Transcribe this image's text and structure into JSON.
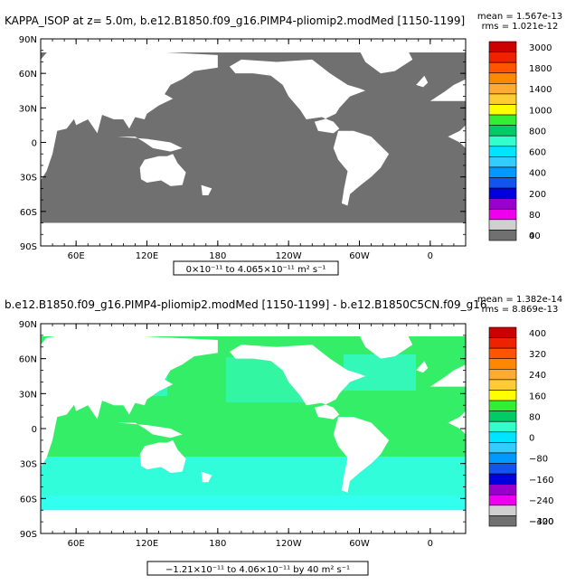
{
  "panels": [
    {
      "id": "top",
      "title": "KAPPA_ISOP at z=    5.0m, b.e12.B1850.f09_g16.PIMP4-pliomip2.modMed [1150-1199]",
      "stats_mean": "mean = 1.567e-13",
      "stats_rms": "rms = 1.021e-12",
      "range_label": "0×10⁻¹¹ to 4.065×10⁻¹¹ m² s⁻¹",
      "ocean_color": "#707070",
      "colorbar": {
        "labels": [
          "3000",
          "1800",
          "1400",
          "1000",
          "800",
          "600",
          "400",
          "200",
          "80",
          "40",
          "0"
        ],
        "colors": [
          "#cc0000",
          "#ee2200",
          "#ff5500",
          "#ff8800",
          "#ffaa33",
          "#ffcc33",
          "#ffff00",
          "#33ee33",
          "#00cc66",
          "#33ffcc",
          "#00e5ff",
          "#33ccff",
          "#0099ff",
          "#1155ee",
          "#0000dd",
          "#9900cc",
          "#ee00ee",
          "#d0d0d0",
          "#707070"
        ]
      }
    },
    {
      "id": "bottom",
      "title": "b.e12.B1850.f09_g16.PIMP4-pliomip2.modMed [1150-1199] - b.e12.B1850C5CN.f09_g16",
      "stats_mean": "mean = 1.382e-14",
      "stats_rms": "rms = 8.869e-13",
      "range_label": "−1.21×10⁻¹¹ to 4.06×10⁻¹¹ by 40 m² s⁻¹",
      "ocean_color": "#33ee66",
      "south_color": "#33ffee",
      "colorbar": {
        "labels": [
          "400",
          "320",
          "240",
          "160",
          "80",
          "0",
          "−80",
          "−160",
          "−240",
          "−320",
          "−400"
        ],
        "colors": [
          "#cc0000",
          "#ee2200",
          "#ff5500",
          "#ff8800",
          "#ffaa33",
          "#ffcc33",
          "#ffff00",
          "#33ee33",
          "#00cc66",
          "#33ffcc",
          "#00e5ff",
          "#33ccff",
          "#0099ff",
          "#1155ee",
          "#0000dd",
          "#9900cc",
          "#ee00ee",
          "#d0d0d0",
          "#707070"
        ]
      }
    }
  ],
  "lat_labels": [
    "90N",
    "60N",
    "30N",
    "0",
    "30S",
    "60S",
    "90S"
  ],
  "lon_labels": [
    "60E",
    "120E",
    "180",
    "120W",
    "60W",
    "0"
  ],
  "colors": {
    "land": "#ffffff",
    "frame": "#000000"
  }
}
